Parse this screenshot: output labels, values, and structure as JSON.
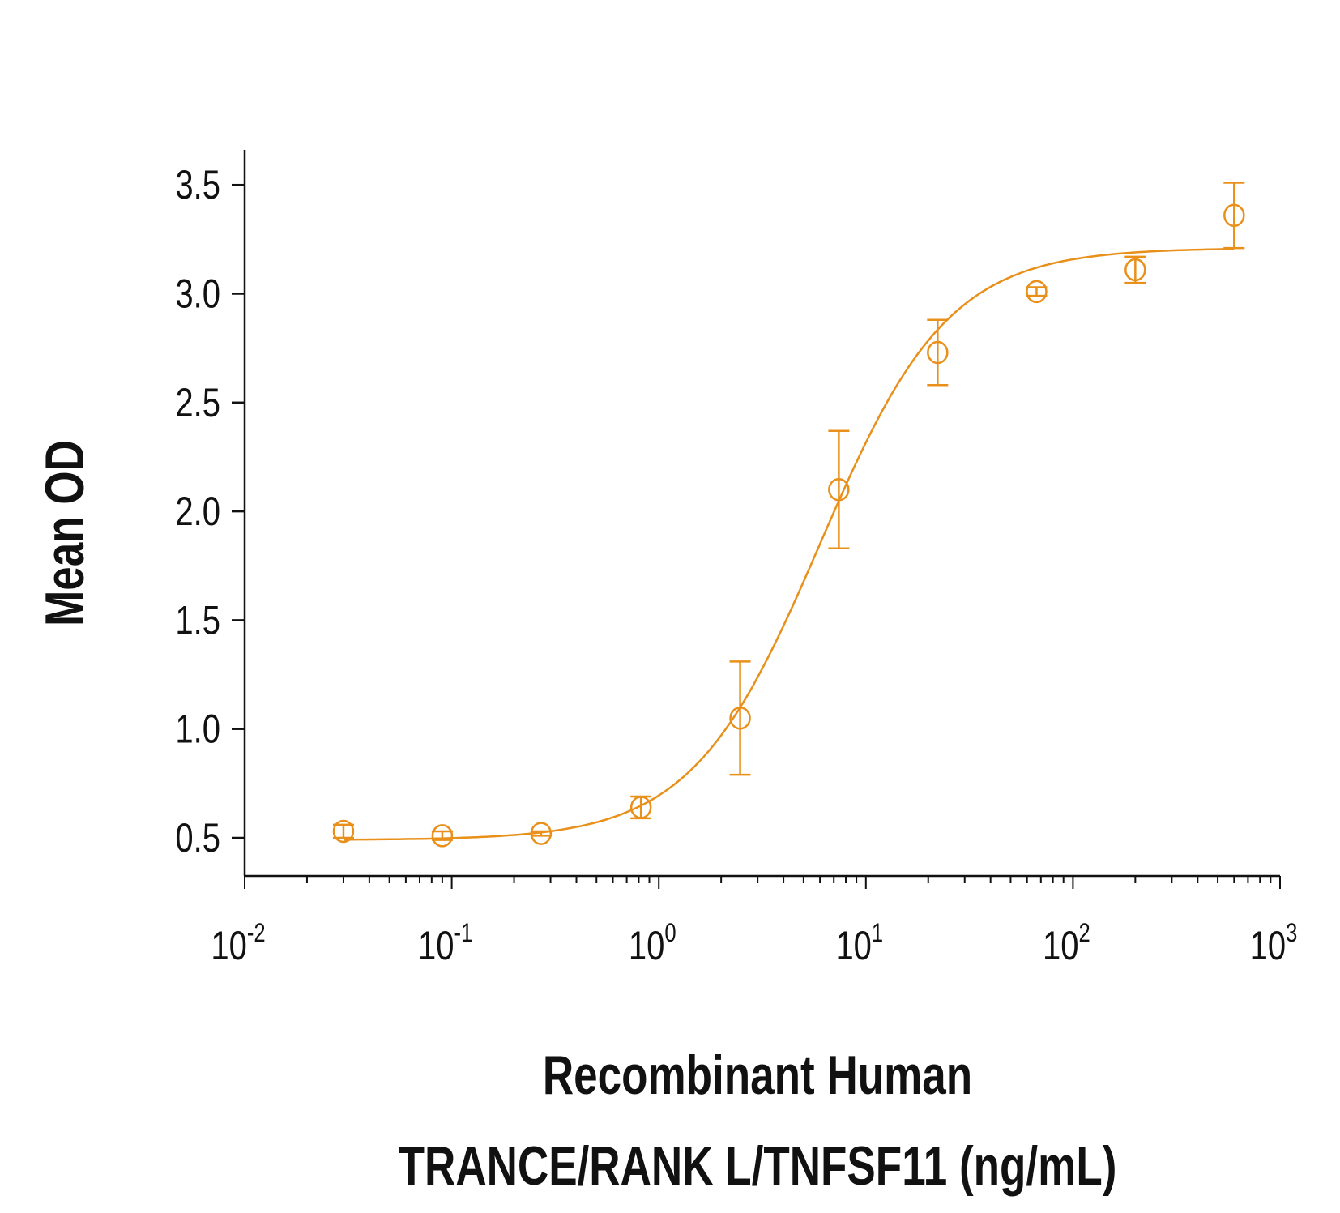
{
  "chart_data": {
    "type": "scatter",
    "title": "",
    "xlabel_line1": "Recombinant Human",
    "xlabel_line2": "TRANCE/RANK L/TNFSF11 (ng/mL)",
    "ylabel": "Mean OD",
    "xscale": "log",
    "xlim": [
      0.01,
      1000
    ],
    "ylim": [
      0.33,
      3.66
    ],
    "x_ticks": [
      {
        "base": "10",
        "exp": "-2",
        "value": 0.01
      },
      {
        "base": "10",
        "exp": "-1",
        "value": 0.1
      },
      {
        "base": "10",
        "exp": "0",
        "value": 1
      },
      {
        "base": "10",
        "exp": "1",
        "value": 10
      },
      {
        "base": "10",
        "exp": "2",
        "value": 100
      },
      {
        "base": "10",
        "exp": "3",
        "value": 1000
      }
    ],
    "y_ticks": [
      "0.5",
      "1.0",
      "1.5",
      "2.0",
      "2.5",
      "3.0",
      "3.5"
    ],
    "grid": false,
    "color": "#E8901A",
    "series": [
      {
        "x": [
          0.03,
          0.09,
          0.27,
          0.82,
          2.47,
          7.4,
          22.2,
          66.7,
          200,
          600
        ],
        "y": [
          0.53,
          0.51,
          0.52,
          0.64,
          1.05,
          2.1,
          2.73,
          3.01,
          3.11,
          3.36
        ],
        "error": [
          0.03,
          0.02,
          0.01,
          0.05,
          0.26,
          0.27,
          0.15,
          0.02,
          0.06,
          0.15
        ]
      }
    ],
    "fit": {
      "model": "4PL",
      "bottom": 0.49,
      "top": 3.21,
      "ec50": 6,
      "hill": 1.4
    }
  }
}
